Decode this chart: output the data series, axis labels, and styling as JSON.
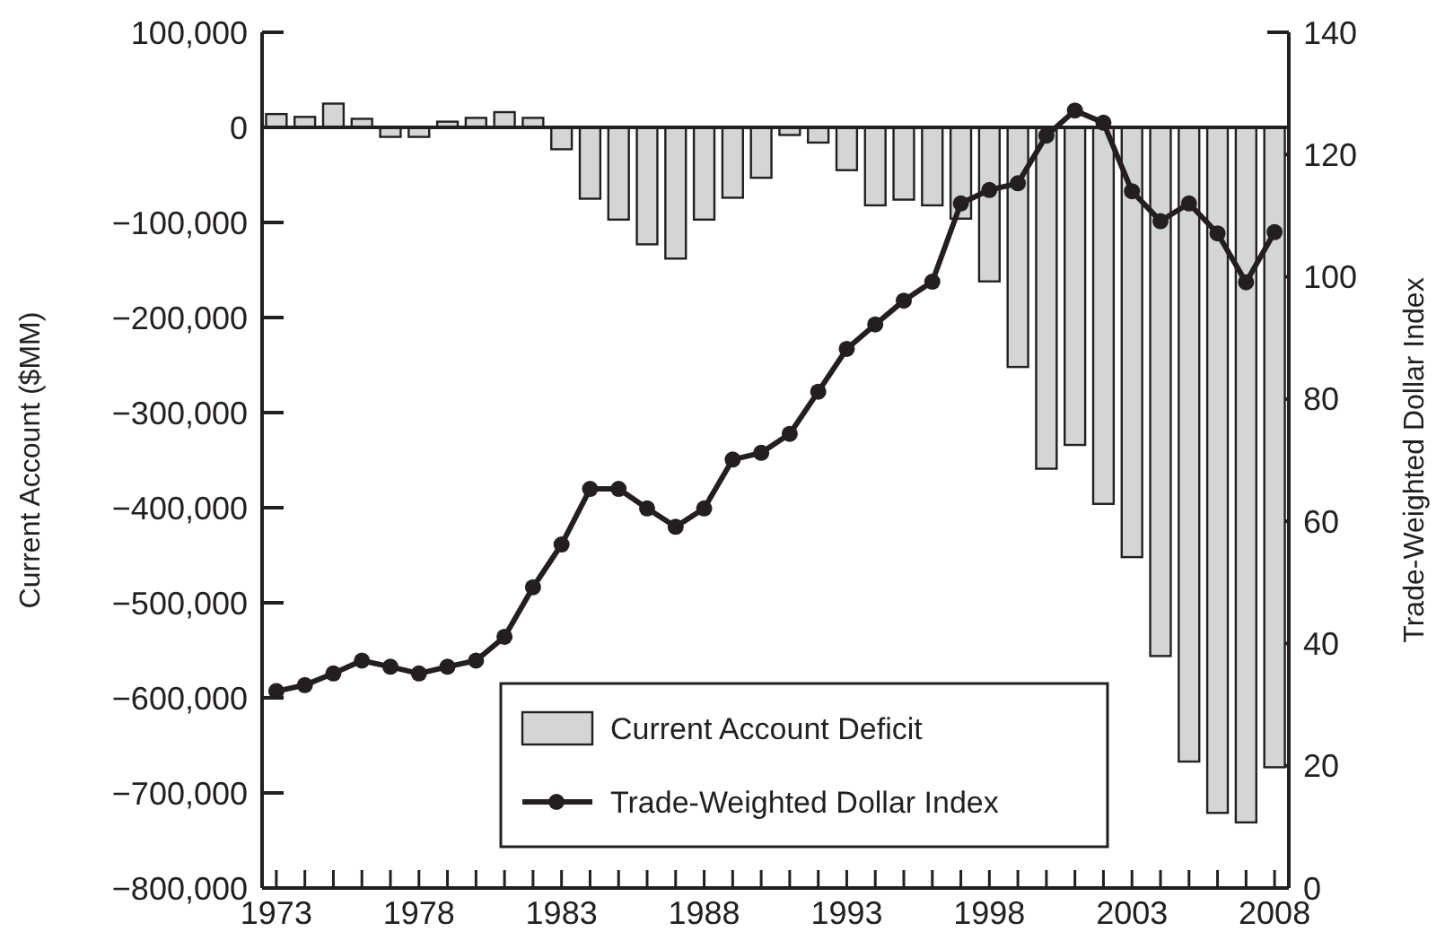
{
  "chart_data": {
    "type": "bar",
    "ylabel": "Current Account ($MM)",
    "y2label": "Trade-Weighted Dollar Index",
    "x": [
      1973,
      1974,
      1975,
      1976,
      1977,
      1978,
      1979,
      1980,
      1981,
      1982,
      1983,
      1984,
      1985,
      1986,
      1987,
      1988,
      1989,
      1990,
      1991,
      1992,
      1993,
      1994,
      1995,
      1996,
      1997,
      1998,
      1999,
      2000,
      2001,
      2002,
      2003,
      2004,
      2005,
      2006,
      2007,
      2008
    ],
    "xlim": [
      1972.5,
      2008.5
    ],
    "xticks": [
      1973,
      {
        "value": 1974,
        "label": null
      },
      {
        "value": 1975,
        "label": null
      },
      {
        "value": 1976,
        "label": null
      },
      {
        "value": 1977,
        "label": null
      },
      1978,
      {
        "value": 1979,
        "label": null
      },
      {
        "value": 1980,
        "label": null
      },
      {
        "value": 1981,
        "label": null
      },
      {
        "value": 1982,
        "label": null
      },
      1983,
      {
        "value": 1984,
        "label": null
      },
      {
        "value": 1985,
        "label": null
      },
      {
        "value": 1986,
        "label": null
      },
      {
        "value": 1987,
        "label": null
      },
      1988,
      {
        "value": 1989,
        "label": null
      },
      {
        "value": 1990,
        "label": null
      },
      {
        "value": 1991,
        "label": null
      },
      {
        "value": 1992,
        "label": null
      },
      1993,
      {
        "value": 1994,
        "label": null
      },
      {
        "value": 1995,
        "label": null
      },
      {
        "value": 1996,
        "label": null
      },
      {
        "value": 1997,
        "label": null
      },
      1998,
      {
        "value": 1999,
        "label": null
      },
      {
        "value": 2000,
        "label": null
      },
      {
        "value": 2001,
        "label": null
      },
      {
        "value": 2002,
        "label": null
      },
      2003,
      {
        "value": 2004,
        "label": null
      },
      {
        "value": 2005,
        "label": null
      },
      {
        "value": 2006,
        "label": null
      },
      {
        "value": 2007,
        "label": null
      },
      2008
    ],
    "ylim": [
      -800000,
      100000
    ],
    "yticks": [
      {
        "value": 100000,
        "label": "100,000"
      },
      {
        "value": 0,
        "label": "0"
      },
      {
        "value": -100000,
        "label": "−100,000"
      },
      {
        "value": -200000,
        "label": "−200,000"
      },
      {
        "value": -300000,
        "label": "−300,000"
      },
      {
        "value": -400000,
        "label": "−400,000"
      },
      {
        "value": -500000,
        "label": "−500,000"
      },
      {
        "value": -600000,
        "label": "−600,000"
      },
      {
        "value": -700000,
        "label": "−700,000"
      },
      {
        "value": -800000,
        "label": "−800,000"
      }
    ],
    "y2lim": [
      0,
      140
    ],
    "y2ticks": [
      0,
      20,
      40,
      60,
      80,
      100,
      120,
      140
    ],
    "legend": "bottom",
    "series": [
      {
        "name": "Current Account Deficit",
        "color": "#d4d5d7",
        "values": [
          14000,
          11000,
          25000,
          9000,
          -10000,
          -10000,
          6000,
          10000,
          16000,
          10000,
          -23000,
          -75000,
          -97000,
          -123000,
          -138000,
          -97000,
          -74000,
          -53000,
          -8000,
          -16000,
          -45000,
          -82000,
          -76000,
          -82000,
          -96000,
          -162000,
          -252000,
          -359000,
          -334000,
          -396000,
          -452000,
          -556000,
          -667000,
          -721000,
          -731000,
          -673000
        ]
      },
      {
        "name": "Trade-Weighted Dollar Index",
        "type": "line",
        "axis": "y2",
        "marker": "circle",
        "line_style": "solid",
        "color": "#231f20",
        "values": [
          32.2,
          33.2,
          35.1,
          37.2,
          36.2,
          35.1,
          36.2,
          37.2,
          41.1,
          49.2,
          56.2,
          65.3,
          65.3,
          62.1,
          59.1,
          62.1,
          70.1,
          71.2,
          74.3,
          81.2,
          88.2,
          92.2,
          96.1,
          99.2,
          112.0,
          114.2,
          115.3,
          123.1,
          127.2,
          125.2,
          114.0,
          109.1,
          112.0,
          107.1,
          99.1,
          107.3
        ]
      }
    ]
  }
}
